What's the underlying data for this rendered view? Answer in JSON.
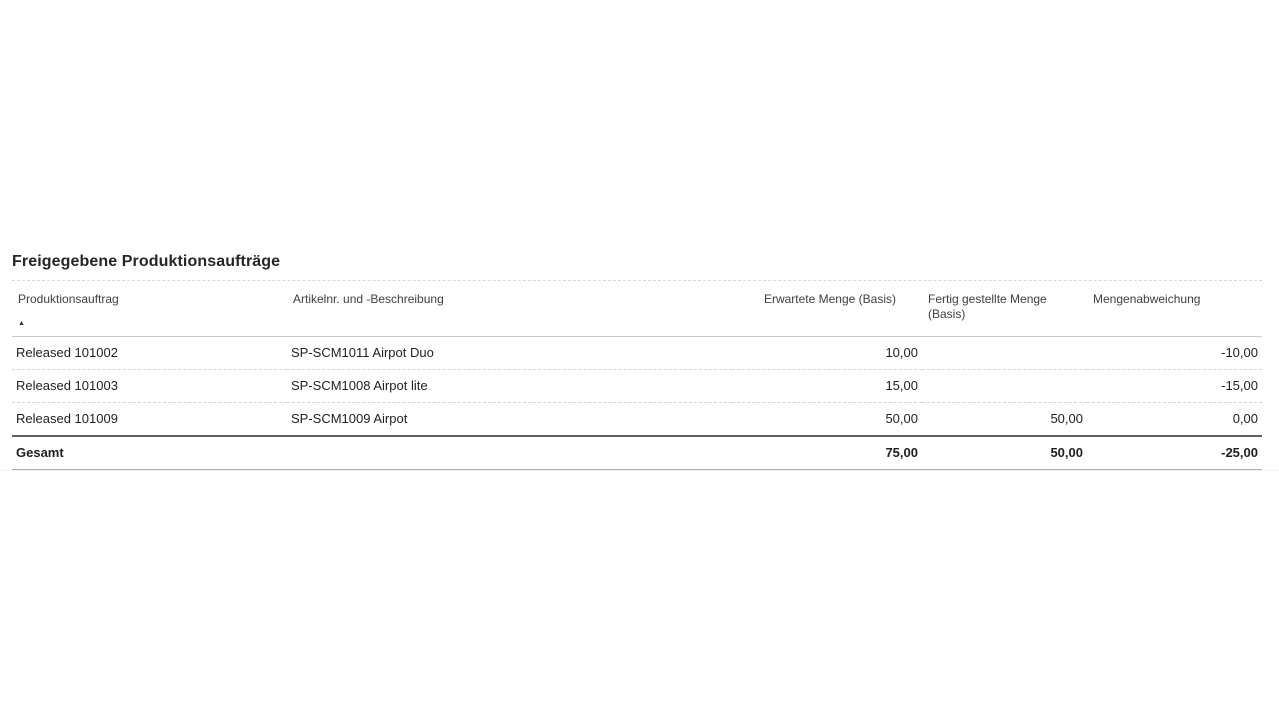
{
  "report": {
    "title": "Freigegebene Produktionsaufträge",
    "columns": [
      {
        "label": "Produktionsauftrag",
        "sorted": "ascending"
      },
      {
        "label": "Artikelnr. und -Beschreibung"
      },
      {
        "label": "Erwartete Menge (Basis)"
      },
      {
        "label": "Fertig gestellte Menge (Basis)"
      },
      {
        "label": "Mengenabweichung"
      }
    ],
    "rows": [
      {
        "cells": [
          "Released 101002",
          "SP-SCM1011 Airpot Duo",
          "10,00",
          "",
          "-10,00"
        ]
      },
      {
        "cells": [
          "Released 101003",
          "SP-SCM1008 Airpot lite",
          "15,00",
          "",
          "-15,00"
        ]
      },
      {
        "cells": [
          "Released 101009",
          "SP-SCM1009 Airpot",
          "50,00",
          "50,00",
          "0,00"
        ]
      }
    ],
    "total": {
      "label": "Gesamt",
      "erwartete_menge": "75,00",
      "fertig_gestellte_menge": "50,00",
      "mengenabweichung": "-25,00"
    }
  },
  "icons": {
    "sort_ascending": "▲"
  },
  "colors": {
    "title_text": "#262626",
    "header_text": "#404040",
    "body_text": "#1f1f1f",
    "row_separator": "#d4d4d4",
    "total_top_border": "#5f5f5f"
  }
}
